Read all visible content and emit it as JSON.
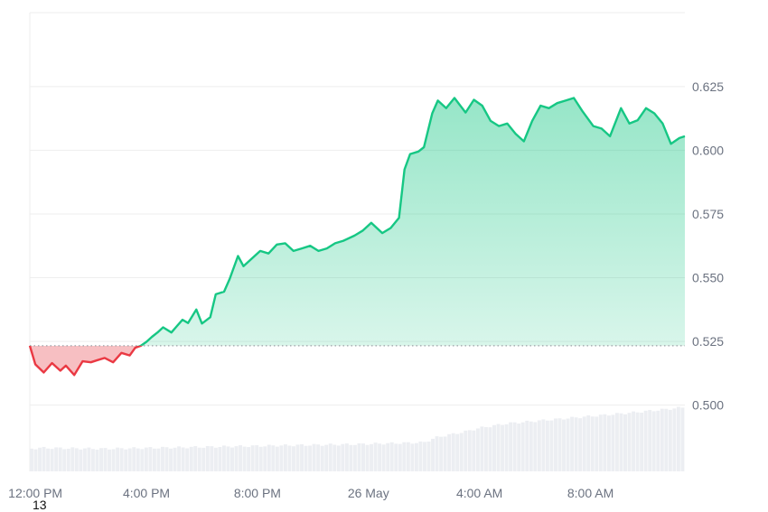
{
  "chart_data": {
    "type": "area",
    "title": "",
    "xlabel": "",
    "ylabel": "",
    "x_range_hours": [
      11.8,
      35.4
    ],
    "ylim": [
      0.474,
      0.654
    ],
    "yticks": [
      0.5,
      0.525,
      0.55,
      0.575,
      0.6,
      0.625
    ],
    "ytick_labels": [
      "0.500",
      "0.525",
      "0.550",
      "0.575",
      "0.600",
      "0.625"
    ],
    "xticks": [
      {
        "hour": 12,
        "label": "12:00 PM"
      },
      {
        "hour": 16,
        "label": "4:00 PM"
      },
      {
        "hour": 20,
        "label": "8:00 PM"
      },
      {
        "hour": 24,
        "label": "26 May"
      },
      {
        "hour": 28,
        "label": "4:00 AM"
      },
      {
        "hour": 32,
        "label": "8:00 AM"
      }
    ],
    "baseline": 0.5233,
    "grid": true,
    "colors": {
      "up_line": "#16c784",
      "up_fill_top": "#16c784",
      "down_line": "#ea3943",
      "down_fill": "#f4a9ae",
      "grid": "#eeeeee",
      "volume": "#eceef2",
      "baseline": "#9aa0a6"
    },
    "series": [
      {
        "x": [
          11.8,
          12.0,
          12.3,
          12.6,
          12.9,
          13.1,
          13.4,
          13.7,
          14.0,
          14.2,
          14.5,
          14.8,
          15.1,
          15.4,
          15.6,
          15.8,
          16.0,
          16.2,
          16.4,
          16.6,
          16.9,
          17.1,
          17.3,
          17.5,
          17.8,
          18.0,
          18.3,
          18.5,
          18.8,
          19.0,
          19.3,
          19.5,
          19.8,
          20.1,
          20.4,
          20.7,
          21.0,
          21.3,
          21.6,
          21.9,
          22.2,
          22.5,
          22.8,
          23.1,
          23.5,
          23.8,
          24.1,
          24.5,
          24.8,
          25.1,
          25.3,
          25.5,
          25.8,
          26.0,
          26.3,
          26.5,
          26.8,
          27.1,
          27.5,
          27.8,
          28.1,
          28.4,
          28.7,
          29.0,
          29.3,
          29.6,
          29.9,
          30.2,
          30.5,
          30.8,
          31.1,
          31.4,
          31.7,
          32.1,
          32.4,
          32.7,
          33.1,
          33.4,
          33.7,
          34.0,
          34.3,
          34.6,
          34.9,
          35.2,
          35.4
        ],
        "values": [
          0.5233,
          0.516,
          0.5128,
          0.5165,
          0.5135,
          0.5155,
          0.5118,
          0.5172,
          0.5168,
          0.5175,
          0.5185,
          0.5168,
          0.5205,
          0.5195,
          0.5225,
          0.5233,
          0.5248,
          0.5268,
          0.5285,
          0.5305,
          0.5285,
          0.531,
          0.5335,
          0.5322,
          0.5375,
          0.532,
          0.5345,
          0.5435,
          0.5445,
          0.5495,
          0.5585,
          0.5545,
          0.5575,
          0.5605,
          0.5595,
          0.563,
          0.5635,
          0.5605,
          0.5615,
          0.5625,
          0.5605,
          0.5615,
          0.5635,
          0.5645,
          0.5665,
          0.5685,
          0.5715,
          0.5675,
          0.5695,
          0.5735,
          0.5925,
          0.5985,
          0.5995,
          0.6012,
          0.6145,
          0.6195,
          0.6165,
          0.6205,
          0.6148,
          0.6198,
          0.6175,
          0.6115,
          0.6095,
          0.6105,
          0.6065,
          0.6035,
          0.6115,
          0.6175,
          0.6165,
          0.6185,
          0.6195,
          0.6205,
          0.6155,
          0.6095,
          0.6085,
          0.6055,
          0.6165,
          0.6105,
          0.6118,
          0.6165,
          0.6145,
          0.6105,
          0.6025,
          0.6048,
          0.6055
        ]
      }
    ]
  },
  "footnote": "13"
}
